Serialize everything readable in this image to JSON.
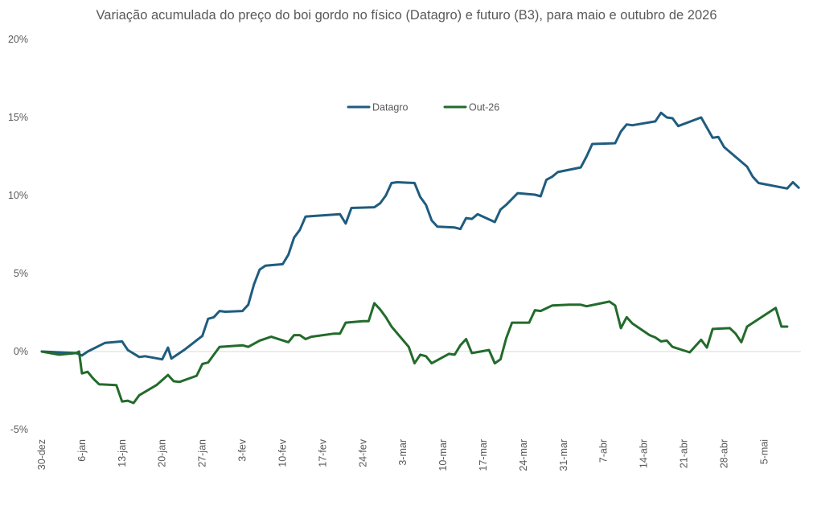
{
  "chart_data": {
    "type": "line",
    "title": "Variação acumulada do preço do boi gordo no físico (Datagro) e futuro (B3), para maio e outubro de 2026",
    "xlabel": "",
    "ylabel": "",
    "x_start": "30-dez",
    "x_ticks": [
      "30-dez",
      "6-jan",
      "13-jan",
      "20-jan",
      "27-jan",
      "3-fev",
      "10-fev",
      "17-fev",
      "24-fev",
      "3-mar",
      "10-mar",
      "17-mar",
      "24-mar",
      "31-mar",
      "7-abr",
      "14-abr",
      "21-abr",
      "28-abr",
      "5-mai"
    ],
    "y_ticks": [
      "-5%",
      "0%",
      "5%",
      "10%",
      "15%",
      "20%"
    ],
    "ylim": [
      -5,
      20
    ],
    "grid": false,
    "zero_line": true,
    "legend_position": "top-center",
    "series": [
      {
        "name": "Datagro",
        "color": "#1f5c7f",
        "points": [
          [
            0,
            0.0
          ],
          [
            6,
            -0.1
          ],
          [
            7,
            -0.25
          ],
          [
            8,
            0.0
          ],
          [
            11,
            0.55
          ],
          [
            14,
            0.65
          ],
          [
            15,
            0.1
          ],
          [
            17,
            -0.35
          ],
          [
            18,
            -0.3
          ],
          [
            21,
            -0.5
          ],
          [
            22,
            0.25
          ],
          [
            22.6,
            -0.45
          ],
          [
            25,
            0.15
          ],
          [
            28,
            1.0
          ],
          [
            29,
            2.1
          ],
          [
            30,
            2.2
          ],
          [
            31,
            2.6
          ],
          [
            32,
            2.55
          ],
          [
            35,
            2.6
          ],
          [
            36,
            3.0
          ],
          [
            37,
            4.3
          ],
          [
            38,
            5.25
          ],
          [
            39,
            5.5
          ],
          [
            42,
            5.6
          ],
          [
            43,
            6.2
          ],
          [
            44,
            7.3
          ],
          [
            45,
            7.8
          ],
          [
            46,
            8.65
          ],
          [
            52,
            8.8
          ],
          [
            53,
            8.2
          ],
          [
            54,
            9.2
          ],
          [
            58,
            9.25
          ],
          [
            59,
            9.5
          ],
          [
            60,
            10.0
          ],
          [
            61,
            10.8
          ],
          [
            62,
            10.85
          ],
          [
            65,
            10.8
          ],
          [
            66,
            9.9
          ],
          [
            67,
            9.4
          ],
          [
            68,
            8.4
          ],
          [
            69,
            8.0
          ],
          [
            72,
            7.95
          ],
          [
            73,
            7.85
          ],
          [
            74,
            8.55
          ],
          [
            75,
            8.5
          ],
          [
            76,
            8.8
          ],
          [
            79,
            8.3
          ],
          [
            80,
            9.1
          ],
          [
            81,
            9.4
          ],
          [
            83,
            10.15
          ],
          [
            86,
            10.05
          ],
          [
            87,
            9.95
          ],
          [
            88,
            11.0
          ],
          [
            89,
            11.2
          ],
          [
            90,
            11.5
          ],
          [
            94,
            11.8
          ],
          [
            95,
            12.5
          ],
          [
            96,
            13.3
          ],
          [
            100,
            13.35
          ],
          [
            101,
            14.1
          ],
          [
            102,
            14.55
          ],
          [
            103,
            14.5
          ],
          [
            107,
            14.75
          ],
          [
            108,
            15.3
          ],
          [
            109,
            15.0
          ],
          [
            110,
            14.95
          ],
          [
            111,
            14.45
          ],
          [
            115,
            15.0
          ],
          [
            117,
            13.7
          ],
          [
            118,
            13.75
          ],
          [
            119,
            13.1
          ],
          [
            123,
            11.85
          ],
          [
            124,
            11.2
          ],
          [
            125,
            10.8
          ],
          [
            130,
            10.45
          ],
          [
            131,
            10.85
          ],
          [
            132,
            10.5
          ]
        ]
      },
      {
        "name": "Out-26",
        "color": "#236b2b",
        "points": [
          [
            0,
            0.0
          ],
          [
            3,
            -0.2
          ],
          [
            6,
            -0.1
          ],
          [
            6.5,
            0.0
          ],
          [
            7,
            -1.4
          ],
          [
            8,
            -1.3
          ],
          [
            9,
            -1.75
          ],
          [
            10,
            -2.1
          ],
          [
            13,
            -2.15
          ],
          [
            14,
            -3.2
          ],
          [
            15,
            -3.15
          ],
          [
            16,
            -3.3
          ],
          [
            17,
            -2.8
          ],
          [
            20,
            -2.15
          ],
          [
            22,
            -1.5
          ],
          [
            23,
            -1.9
          ],
          [
            24,
            -1.95
          ],
          [
            27,
            -1.55
          ],
          [
            28,
            -0.8
          ],
          [
            29,
            -0.7
          ],
          [
            31,
            0.3
          ],
          [
            33,
            0.35
          ],
          [
            35,
            0.4
          ],
          [
            36,
            0.3
          ],
          [
            38,
            0.7
          ],
          [
            40,
            0.95
          ],
          [
            43,
            0.6
          ],
          [
            44,
            1.05
          ],
          [
            45,
            1.05
          ],
          [
            46,
            0.8
          ],
          [
            47,
            0.95
          ],
          [
            51,
            1.15
          ],
          [
            52,
            1.15
          ],
          [
            53,
            1.85
          ],
          [
            56,
            1.95
          ],
          [
            57,
            1.95
          ],
          [
            58,
            3.1
          ],
          [
            59,
            2.7
          ],
          [
            60,
            2.2
          ],
          [
            61,
            1.6
          ],
          [
            64,
            0.3
          ],
          [
            65,
            -0.75
          ],
          [
            66,
            -0.2
          ],
          [
            67,
            -0.3
          ],
          [
            68,
            -0.75
          ],
          [
            71,
            -0.15
          ],
          [
            72,
            -0.2
          ],
          [
            73,
            0.4
          ],
          [
            74,
            0.8
          ],
          [
            75,
            -0.1
          ],
          [
            78,
            0.1
          ],
          [
            79,
            -0.75
          ],
          [
            80,
            -0.5
          ],
          [
            81,
            0.85
          ],
          [
            82,
            1.85
          ],
          [
            85,
            1.85
          ],
          [
            86,
            2.65
          ],
          [
            87,
            2.6
          ],
          [
            89,
            2.95
          ],
          [
            92,
            3.0
          ],
          [
            94,
            3.0
          ],
          [
            95,
            2.9
          ],
          [
            99,
            3.2
          ],
          [
            100,
            2.95
          ],
          [
            101,
            1.5
          ],
          [
            102,
            2.2
          ],
          [
            103,
            1.8
          ],
          [
            106,
            1.05
          ],
          [
            107,
            0.9
          ],
          [
            108,
            0.65
          ],
          [
            109,
            0.7
          ],
          [
            110,
            0.3
          ],
          [
            113,
            -0.05
          ],
          [
            115,
            0.75
          ],
          [
            116,
            0.25
          ],
          [
            117,
            1.45
          ],
          [
            120,
            1.5
          ],
          [
            121,
            1.15
          ],
          [
            122,
            0.6
          ],
          [
            123,
            1.6
          ],
          [
            128,
            2.8
          ],
          [
            129,
            1.6
          ],
          [
            130,
            1.6
          ]
        ]
      }
    ]
  }
}
